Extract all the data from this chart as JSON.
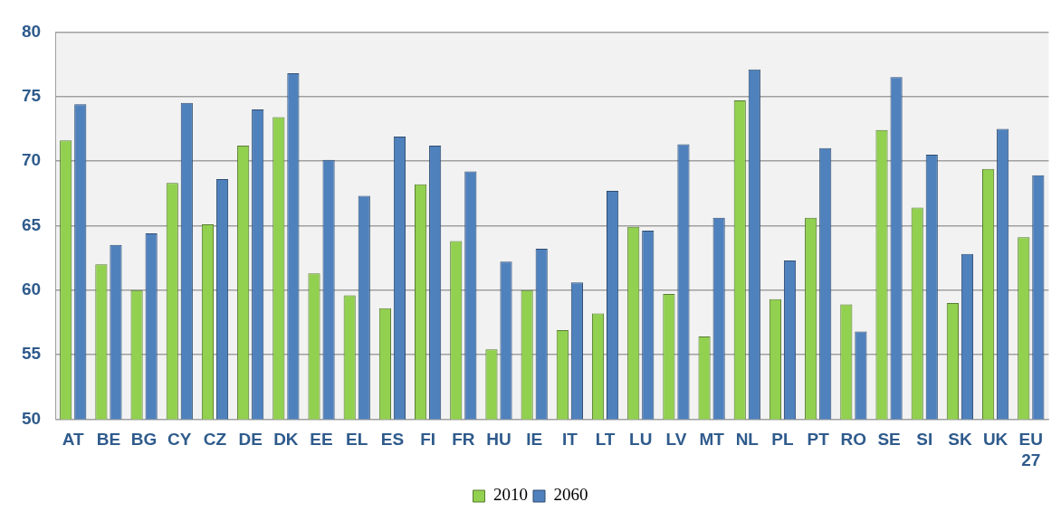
{
  "chart_data": {
    "type": "bar",
    "categories": [
      "AT",
      "BE",
      "BG",
      "CY",
      "CZ",
      "DE",
      "DK",
      "EE",
      "EL",
      "ES",
      "FI",
      "FR",
      "HU",
      "IE",
      "IT",
      "LT",
      "LU",
      "LV",
      "MT",
      "NL",
      "PL",
      "PT",
      "RO",
      "SE",
      "SI",
      "SK",
      "UK",
      "EU 27"
    ],
    "series": [
      {
        "name": "2010",
        "color": "#92d050",
        "values": [
          71.6,
          62.0,
          60.0,
          68.3,
          65.1,
          71.2,
          73.4,
          61.3,
          59.6,
          58.6,
          68.2,
          63.8,
          55.4,
          60.0,
          56.9,
          58.2,
          64.9,
          59.7,
          56.4,
          74.7,
          59.3,
          65.6,
          58.9,
          72.4,
          66.4,
          59.0,
          69.4,
          64.1
        ]
      },
      {
        "name": "2060",
        "color": "#4f81bd",
        "values": [
          74.4,
          63.5,
          64.4,
          74.5,
          68.6,
          74.0,
          76.8,
          70.1,
          67.3,
          71.9,
          71.2,
          69.2,
          62.2,
          63.2,
          60.6,
          67.7,
          64.6,
          71.3,
          65.6,
          77.1,
          62.3,
          71.0,
          56.8,
          76.5,
          70.5,
          62.8,
          72.5,
          68.9
        ]
      }
    ],
    "ylim": [
      50,
      80
    ],
    "yticks": [
      50,
      55,
      60,
      65,
      70,
      75,
      80
    ],
    "grid": "y",
    "legend": "bottom"
  }
}
